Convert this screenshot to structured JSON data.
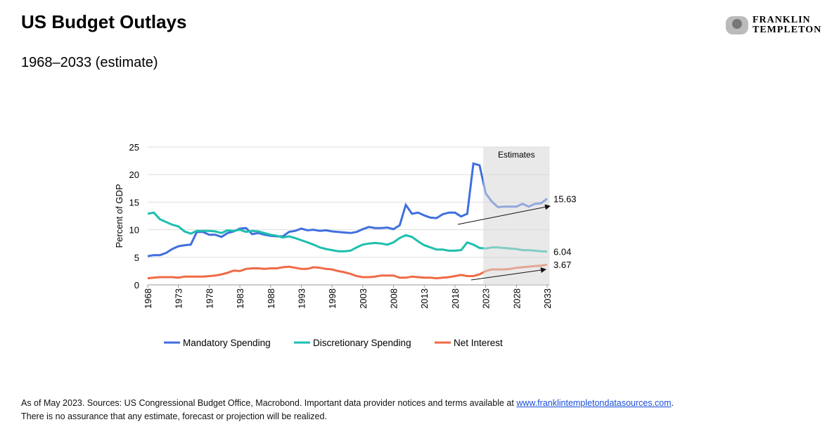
{
  "header": {
    "title": "US Budget Outlays",
    "subtitle": "1968–2033 (estimate)",
    "logo": [
      "FRANKLIN",
      "TEMPLETON"
    ]
  },
  "chart_data": {
    "type": "line",
    "y_label": "Percent of GDP",
    "x": [
      1968,
      1969,
      1970,
      1971,
      1972,
      1973,
      1974,
      1975,
      1976,
      1977,
      1978,
      1979,
      1980,
      1981,
      1982,
      1983,
      1984,
      1985,
      1986,
      1987,
      1988,
      1989,
      1990,
      1991,
      1992,
      1993,
      1994,
      1995,
      1996,
      1997,
      1998,
      1999,
      2000,
      2001,
      2002,
      2003,
      2004,
      2005,
      2006,
      2007,
      2008,
      2009,
      2010,
      2011,
      2012,
      2013,
      2014,
      2015,
      2016,
      2017,
      2018,
      2019,
      2020,
      2021,
      2022,
      2023,
      2024,
      2025,
      2026,
      2027,
      2028,
      2029,
      2030,
      2031,
      2032,
      2033
    ],
    "series": [
      {
        "name": "Mandatory Spending",
        "color": "#3f6fe0",
        "values": [
          5.2,
          5.4,
          5.4,
          5.8,
          6.5,
          7.0,
          7.2,
          7.3,
          9.6,
          9.6,
          9.1,
          9.1,
          8.7,
          9.4,
          9.7,
          10.2,
          10.3,
          9.2,
          9.4,
          9.1,
          8.9,
          8.8,
          8.8,
          9.6,
          9.8,
          10.2,
          9.9,
          10.0,
          9.8,
          9.9,
          9.7,
          9.6,
          9.5,
          9.4,
          9.6,
          10.1,
          10.5,
          10.3,
          10.3,
          10.4,
          10.1,
          10.8,
          14.5,
          12.9,
          13.1,
          12.6,
          12.2,
          12.1,
          12.8,
          13.1,
          13.1,
          12.4,
          12.9,
          22.0,
          21.7,
          16.6,
          15.1,
          14.1,
          14.2,
          14.2,
          14.2,
          14.7,
          14.2,
          14.7,
          14.8,
          15.63
        ]
      },
      {
        "name": "Discretionary Spending",
        "color": "#1dbfae",
        "values": [
          12.9,
          13.1,
          11.9,
          11.4,
          10.9,
          10.6,
          9.7,
          9.3,
          9.8,
          9.8,
          9.8,
          9.7,
          9.4,
          9.9,
          9.8,
          10.0,
          9.6,
          9.8,
          9.7,
          9.4,
          9.1,
          8.9,
          8.6,
          8.8,
          8.5,
          8.1,
          7.7,
          7.3,
          6.8,
          6.5,
          6.3,
          6.1,
          6.1,
          6.2,
          6.8,
          7.3,
          7.5,
          7.6,
          7.5,
          7.3,
          7.7,
          8.5,
          9.0,
          8.7,
          7.9,
          7.2,
          6.8,
          6.4,
          6.4,
          6.2,
          6.2,
          6.3,
          7.7,
          7.3,
          6.7,
          6.6,
          6.8,
          6.8,
          6.7,
          6.6,
          6.5,
          6.3,
          6.3,
          6.2,
          6.1,
          6.04
        ]
      },
      {
        "name": "Net Interest",
        "color": "#f06a45",
        "values": [
          1.2,
          1.3,
          1.4,
          1.4,
          1.4,
          1.3,
          1.5,
          1.5,
          1.5,
          1.5,
          1.6,
          1.7,
          1.9,
          2.2,
          2.6,
          2.5,
          2.9,
          3.0,
          3.0,
          2.9,
          3.0,
          3.0,
          3.2,
          3.3,
          3.1,
          2.9,
          2.9,
          3.2,
          3.1,
          2.9,
          2.8,
          2.5,
          2.3,
          2.0,
          1.6,
          1.4,
          1.4,
          1.5,
          1.7,
          1.7,
          1.7,
          1.3,
          1.3,
          1.5,
          1.4,
          1.3,
          1.3,
          1.2,
          1.3,
          1.4,
          1.6,
          1.8,
          1.6,
          1.6,
          1.9,
          2.5,
          2.8,
          2.8,
          2.8,
          2.9,
          3.1,
          3.2,
          3.3,
          3.4,
          3.5,
          3.67
        ]
      }
    ],
    "xlim": [
      1968,
      2033.4
    ],
    "xticks": [
      1968,
      1973,
      1978,
      1983,
      1988,
      1993,
      1998,
      2003,
      2008,
      2013,
      2018,
      2023,
      2028,
      2033
    ],
    "ylim": [
      0,
      25
    ],
    "yticks": [
      0,
      5,
      10,
      15,
      20,
      25
    ],
    "grid": true,
    "shaded_region": {
      "label": "Estimates",
      "x": [
        2022.6,
        2033.4
      ]
    }
  },
  "footer": {
    "lines": [
      [
        "As of May 2023. Sources: US Congressional Budget Office, Macrobond. Important data provider notices and terms available at ",
        "www.franklintempletondatasources.com",
        "."
      ],
      [
        "There is no assurance that any estimate, forecast or projection will be realized."
      ]
    ]
  }
}
